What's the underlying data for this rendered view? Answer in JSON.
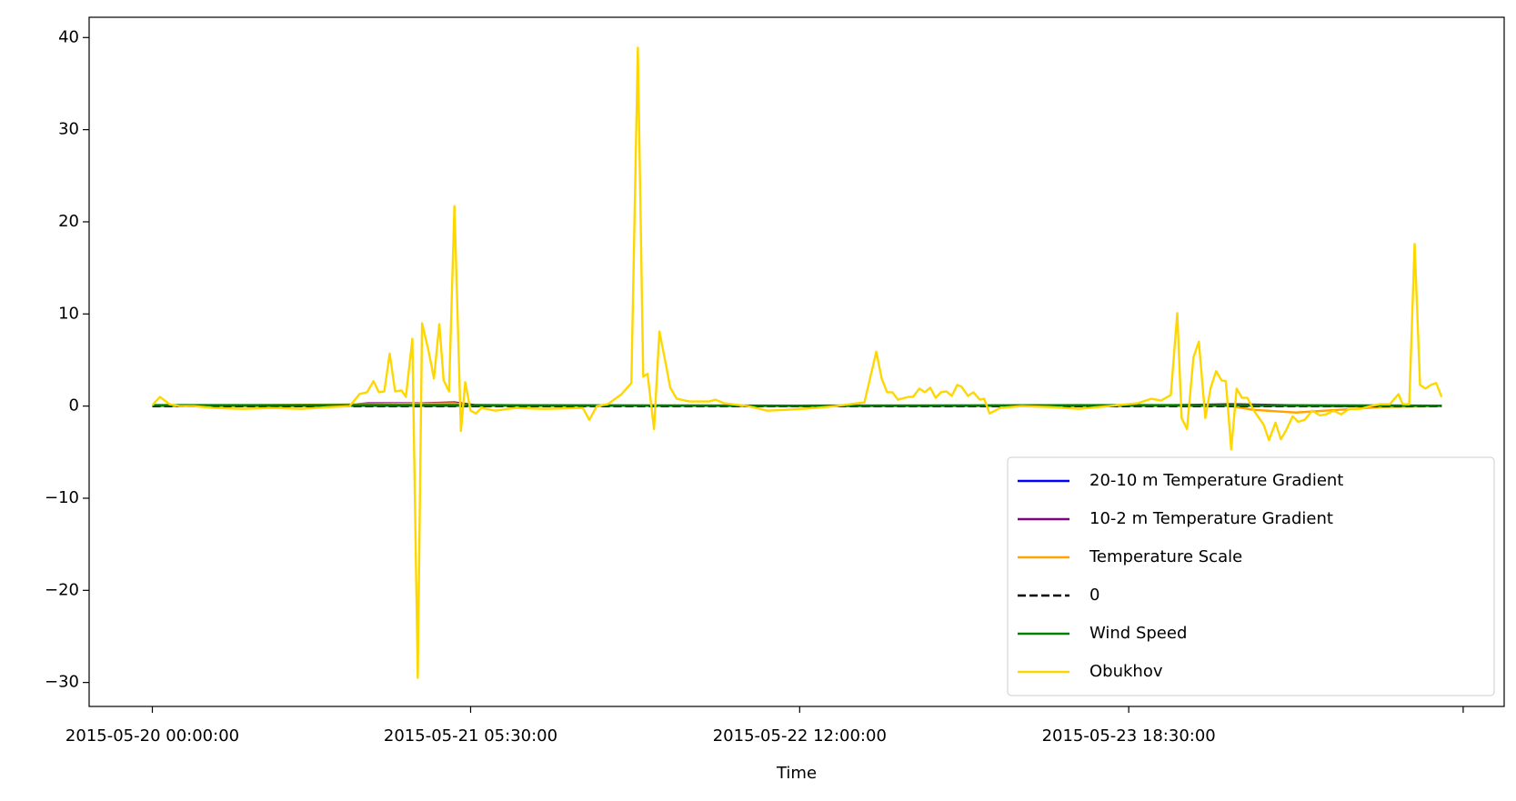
{
  "chart_data": {
    "type": "line",
    "xlabel": "Time",
    "xlim": [
      -5.86,
      125.3
    ],
    "xticks": [
      {
        "value": 0,
        "label": "2015-05-20 00:00:00"
      },
      {
        "value": 29.5,
        "label": "2015-05-21 05:30:00"
      },
      {
        "value": 60,
        "label": "2015-05-22 12:00:00"
      },
      {
        "value": 90.5,
        "label": "2015-05-23 18:30:00"
      },
      {
        "value": 121.5,
        "label": null
      }
    ],
    "ylim": [
      -32.6,
      42.2
    ],
    "yticks": [
      {
        "value": -30,
        "label": "−30"
      },
      {
        "value": -20,
        "label": "−20"
      },
      {
        "value": -10,
        "label": "−10"
      },
      0,
      10,
      20,
      30,
      40
    ],
    "legend": "lower right",
    "series": [
      {
        "name": "20-10 m Temperature Gradient",
        "color": "#0000ff",
        "x": [
          0,
          30,
          60,
          90,
          119.5
        ],
        "values": [
          0.05,
          0.05,
          0.05,
          0.05,
          0.05
        ]
      },
      {
        "name": "10-2 m Temperature Gradient",
        "color": "#800080",
        "x": [
          0,
          18,
          20,
          25,
          28,
          30,
          60,
          90,
          100,
          110,
          119.5
        ],
        "values": [
          0,
          0.1,
          0.3,
          0.3,
          0.4,
          0.1,
          0,
          0,
          0.2,
          0,
          0
        ]
      },
      {
        "name": "Temperature Scale",
        "color": "#ffa500",
        "x": [
          0,
          20,
          28,
          30,
          60,
          90,
          100,
          102,
          106,
          110,
          114,
          119.5
        ],
        "values": [
          0,
          0.2,
          0.3,
          0,
          0,
          0,
          0,
          -0.4,
          -0.7,
          -0.4,
          -0.1,
          0
        ]
      },
      {
        "name": "0",
        "color": "#000000",
        "dash": "dashed",
        "x": [
          0,
          119.5
        ],
        "values": [
          0,
          0
        ]
      },
      {
        "name": "Wind Speed",
        "color": "#008000",
        "x": [
          0,
          30,
          60,
          90,
          100,
          119.5
        ],
        "values": [
          0.1,
          0.1,
          0.05,
          0.1,
          0.1,
          0.05
        ]
      },
      {
        "name": "Obukhov",
        "color": "#ffd700",
        "x": [
          0,
          0.7,
          1.6,
          2.5,
          3.9,
          5.7,
          8.4,
          11.1,
          13.8,
          16.5,
          18.3,
          19.2,
          19.9,
          20.5,
          21.0,
          21.5,
          22.0,
          22.5,
          23.1,
          23.5,
          24.1,
          24.6,
          25.0,
          25.6,
          26.1,
          26.6,
          27.0,
          27.5,
          28.0,
          28.6,
          29.0,
          29.5,
          30.0,
          30.5,
          31.8,
          33.6,
          36.3,
          39.9,
          40.5,
          41.2,
          42.2,
          43.5,
          44.4,
          45.0,
          45.5,
          45.9,
          46.5,
          47.0,
          47.6,
          48.0,
          48.6,
          49.8,
          51.6,
          52.2,
          53.0,
          55.2,
          57.0,
          58.8,
          61.5,
          63.3,
          66.0,
          67.1,
          67.6,
          68.1,
          68.6,
          69.1,
          70.1,
          70.5,
          71.1,
          71.6,
          72.1,
          72.6,
          73.1,
          73.6,
          74.1,
          74.6,
          75.0,
          75.6,
          76.1,
          76.7,
          77.1,
          77.6,
          78.6,
          80.5,
          83.2,
          85.9,
          88.6,
          91.3,
          92.6,
          93.5,
          94.4,
          95.0,
          95.4,
          95.9,
          96.5,
          97.0,
          97.6,
          98.1,
          98.6,
          99.1,
          99.5,
          100.0,
          100.5,
          101.0,
          101.5,
          102.1,
          103.0,
          103.5,
          104.1,
          104.6,
          105.1,
          105.7,
          106.2,
          106.8,
          107.5,
          108.2,
          108.8,
          109.5,
          110.2,
          110.9,
          112.0,
          112.9,
          113.8,
          114.7,
          115.5,
          115.9,
          116.5,
          117.0,
          117.5,
          118.0,
          118.5,
          119.0,
          119.5
        ],
        "values": [
          0.1,
          1.0,
          0.2,
          0,
          0,
          -0.2,
          -0.3,
          -0.2,
          -0.3,
          -0.1,
          0,
          1.3,
          1.5,
          2.7,
          1.5,
          1.6,
          5.7,
          1.6,
          1.7,
          1.0,
          7.3,
          -29.5,
          9.0,
          6.0,
          3.0,
          8.9,
          2.8,
          1.6,
          21.7,
          -2.7,
          2.6,
          -0.5,
          -0.8,
          -0.2,
          -0.5,
          -0.2,
          -0.3,
          -0.2,
          -1.5,
          0,
          0.2,
          1.3,
          2.5,
          38.9,
          3.2,
          3.5,
          -2.5,
          8.1,
          4.5,
          2.0,
          0.8,
          0.5,
          0.5,
          0.7,
          0.3,
          0,
          -0.5,
          -0.4,
          -0.2,
          0,
          0.4,
          5.9,
          3.0,
          1.5,
          1.5,
          0.7,
          1.0,
          1.0,
          1.9,
          1.5,
          2.0,
          0.9,
          1.5,
          1.6,
          1.1,
          2.3,
          2.1,
          1.1,
          1.5,
          0.7,
          0.8,
          -0.8,
          -0.2,
          0,
          -0.1,
          -0.3,
          0,
          0.3,
          0.8,
          0.6,
          1.2,
          10.1,
          -1.3,
          -2.5,
          5.3,
          7.0,
          -1.3,
          2.0,
          3.8,
          2.8,
          2.7,
          -4.7,
          1.9,
          0.9,
          0.9,
          -0.5,
          -2.0,
          -3.7,
          -1.8,
          -3.6,
          -2.6,
          -1.1,
          -1.7,
          -1.5,
          -0.5,
          -1.0,
          -0.9,
          -0.5,
          -0.9,
          -0.3,
          -0.3,
          0,
          0.2,
          0.2,
          1.3,
          0.2,
          0.2,
          17.6,
          2.3,
          1.9,
          2.3,
          2.5,
          1.0
        ]
      }
    ]
  }
}
